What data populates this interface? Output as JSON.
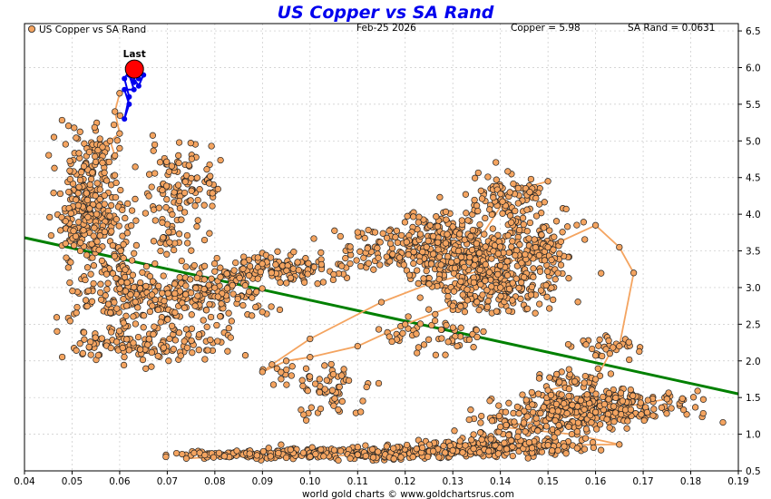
{
  "chart_data": {
    "type": "scatter",
    "title": "US Copper vs SA Rand",
    "legend_label": "US Copper vs SA Rand",
    "header": {
      "date": "Feb-25  2026",
      "copper": "Copper = 5.98",
      "rand": "SA Rand = 0.0631"
    },
    "credit": "world gold charts © www.goldchartsrus.com",
    "xlim": [
      0.04,
      0.19
    ],
    "ylim": [
      0.5,
      6.6
    ],
    "x_ticks": [
      "0.04",
      "0.05",
      "0.06",
      "0.07",
      "0.08",
      "0.09",
      "0.10",
      "0.11",
      "0.12",
      "0.13",
      "0.14",
      "0.15",
      "0.16",
      "0.17",
      "0.18",
      "0.19"
    ],
    "y_ticks": [
      "0.5",
      "1.0",
      "1.5",
      "2.0",
      "2.5",
      "3.0",
      "3.5",
      "4.0",
      "4.5",
      "5.0",
      "5.5",
      "6.0",
      "6.5"
    ],
    "last_label": "Last",
    "last_point": {
      "x": 0.0631,
      "y": 5.98
    },
    "trendline": [
      [
        0.04,
        3.68
      ],
      [
        0.19,
        1.55
      ]
    ],
    "colors": {
      "point": "#f4a460",
      "point_edge": "#222222",
      "path": "#f4a460",
      "recent": "#0000ee",
      "last": "#ff0000",
      "trend": "#008000",
      "title": "#0000ee"
    },
    "clusters": [
      [
        0.052,
        4.2,
        0.003,
        0.45,
        150
      ],
      [
        0.056,
        4.6,
        0.002,
        0.4,
        60
      ],
      [
        0.056,
        3.85,
        0.004,
        0.3,
        90
      ],
      [
        0.058,
        3.5,
        0.003,
        0.2,
        30
      ],
      [
        0.073,
        4.35,
        0.004,
        0.28,
        110
      ],
      [
        0.07,
        3.65,
        0.002,
        0.12,
        25
      ],
      [
        0.061,
        3.0,
        0.005,
        0.18,
        70
      ],
      [
        0.058,
        2.28,
        0.003,
        0.08,
        20
      ],
      [
        0.067,
        2.2,
        0.008,
        0.12,
        110
      ],
      [
        0.067,
        2.75,
        0.008,
        0.2,
        110
      ],
      [
        0.075,
        2.85,
        0.006,
        0.12,
        60
      ],
      [
        0.08,
        3.1,
        0.005,
        0.12,
        55
      ],
      [
        0.095,
        3.25,
        0.007,
        0.1,
        120
      ],
      [
        0.085,
        2.9,
        0.004,
        0.15,
        40
      ],
      [
        0.105,
        1.55,
        0.004,
        0.15,
        45
      ],
      [
        0.098,
        1.85,
        0.004,
        0.1,
        25
      ],
      [
        0.118,
        3.55,
        0.007,
        0.15,
        100
      ],
      [
        0.127,
        3.75,
        0.005,
        0.2,
        100
      ],
      [
        0.132,
        3.2,
        0.006,
        0.25,
        160
      ],
      [
        0.14,
        3.35,
        0.007,
        0.3,
        170
      ],
      [
        0.142,
        4.25,
        0.004,
        0.18,
        90
      ],
      [
        0.148,
        3.55,
        0.005,
        0.2,
        80
      ],
      [
        0.137,
        2.95,
        0.004,
        0.2,
        50
      ],
      [
        0.127,
        2.35,
        0.006,
        0.12,
        50
      ],
      [
        0.145,
        3.0,
        0.003,
        0.15,
        35
      ],
      [
        0.162,
        2.2,
        0.004,
        0.08,
        30
      ],
      [
        0.155,
        1.75,
        0.004,
        0.08,
        40
      ],
      [
        0.16,
        1.35,
        0.01,
        0.1,
        160
      ],
      [
        0.15,
        1.15,
        0.008,
        0.08,
        90
      ],
      [
        0.16,
        1.45,
        0.007,
        0.08,
        100
      ],
      [
        0.085,
        0.72,
        0.006,
        0.03,
        70
      ],
      [
        0.1,
        0.74,
        0.007,
        0.04,
        100
      ],
      [
        0.118,
        0.73,
        0.007,
        0.04,
        110
      ],
      [
        0.132,
        0.8,
        0.007,
        0.05,
        120
      ],
      [
        0.148,
        0.83,
        0.006,
        0.06,
        90
      ],
      [
        0.14,
        0.95,
        0.004,
        0.06,
        35
      ]
    ],
    "path": [
      [
        0.074,
        0.67
      ],
      [
        0.082,
        0.7
      ],
      [
        0.095,
        0.68
      ],
      [
        0.11,
        0.72
      ],
      [
        0.13,
        0.78
      ],
      [
        0.15,
        0.85
      ],
      [
        0.165,
        0.86
      ],
      [
        0.155,
        1.0
      ],
      [
        0.14,
        1.1
      ],
      [
        0.16,
        1.3
      ],
      [
        0.175,
        1.48
      ],
      [
        0.16,
        1.3
      ],
      [
        0.15,
        1.6
      ],
      [
        0.16,
        1.75
      ],
      [
        0.163,
        2.1
      ],
      [
        0.165,
        2.2
      ],
      [
        0.168,
        3.2
      ],
      [
        0.165,
        3.55
      ],
      [
        0.16,
        3.85
      ],
      [
        0.15,
        3.55
      ],
      [
        0.14,
        3.3
      ],
      [
        0.125,
        3.05
      ],
      [
        0.115,
        2.8
      ],
      [
        0.1,
        2.3
      ],
      [
        0.092,
        1.95
      ],
      [
        0.09,
        1.85
      ],
      [
        0.095,
        2.0
      ],
      [
        0.1,
        2.05
      ],
      [
        0.11,
        2.2
      ],
      [
        0.12,
        2.5
      ],
      [
        0.13,
        2.75
      ],
      [
        0.14,
        3.0
      ],
      [
        0.135,
        3.6
      ],
      [
        0.142,
        4.3
      ],
      [
        0.15,
        4.45
      ]
    ],
    "recent_path": [
      [
        0.0631,
        5.98
      ],
      [
        0.063,
        5.8
      ],
      [
        0.062,
        5.9
      ],
      [
        0.063,
        5.7
      ],
      [
        0.061,
        5.7
      ],
      [
        0.062,
        5.5
      ],
      [
        0.061,
        5.3
      ],
      [
        0.062,
        5.6
      ],
      [
        0.061,
        5.85
      ],
      [
        0.062,
        5.95
      ],
      [
        0.064,
        5.75
      ],
      [
        0.065,
        5.9
      ],
      [
        0.063,
        6.05
      ],
      [
        0.064,
        5.85
      ],
      [
        0.0631,
        5.98
      ]
    ],
    "early_path": [
      [
        0.06,
        5.65
      ],
      [
        0.059,
        5.4
      ],
      [
        0.06,
        5.1
      ],
      [
        0.058,
        5.0
      ],
      [
        0.059,
        4.8
      ],
      [
        0.06,
        4.9
      ]
    ]
  }
}
